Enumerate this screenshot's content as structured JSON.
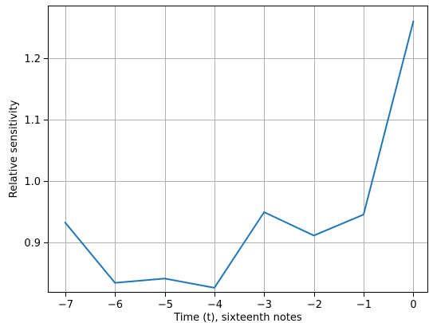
{
  "chart_data": {
    "type": "line",
    "title": "",
    "xlabel": "Time (t), sixteenth notes",
    "ylabel": "Relative sensitivity",
    "grid": true,
    "xlim": [
      -7.35,
      0.3
    ],
    "ylim": [
      0.818,
      1.285
    ],
    "x_ticks": [
      -7,
      -6,
      -5,
      -4,
      -3,
      -2,
      -1,
      0
    ],
    "x_tick_labels": [
      "−7",
      "−6",
      "−5",
      "−4",
      "−3",
      "−2",
      "−1",
      "0"
    ],
    "y_ticks": [
      0.9,
      1.0,
      1.1,
      1.2
    ],
    "y_tick_labels": [
      "0.9",
      "1.0",
      "1.1",
      "1.2"
    ],
    "series": [
      {
        "color": "#1f77b4",
        "x": [
          -7,
          -6,
          -5,
          -4,
          -3,
          -2,
          -1,
          0
        ],
        "y": [
          0.932,
          0.834,
          0.841,
          0.826,
          0.949,
          0.911,
          0.945,
          1.259
        ]
      }
    ]
  }
}
